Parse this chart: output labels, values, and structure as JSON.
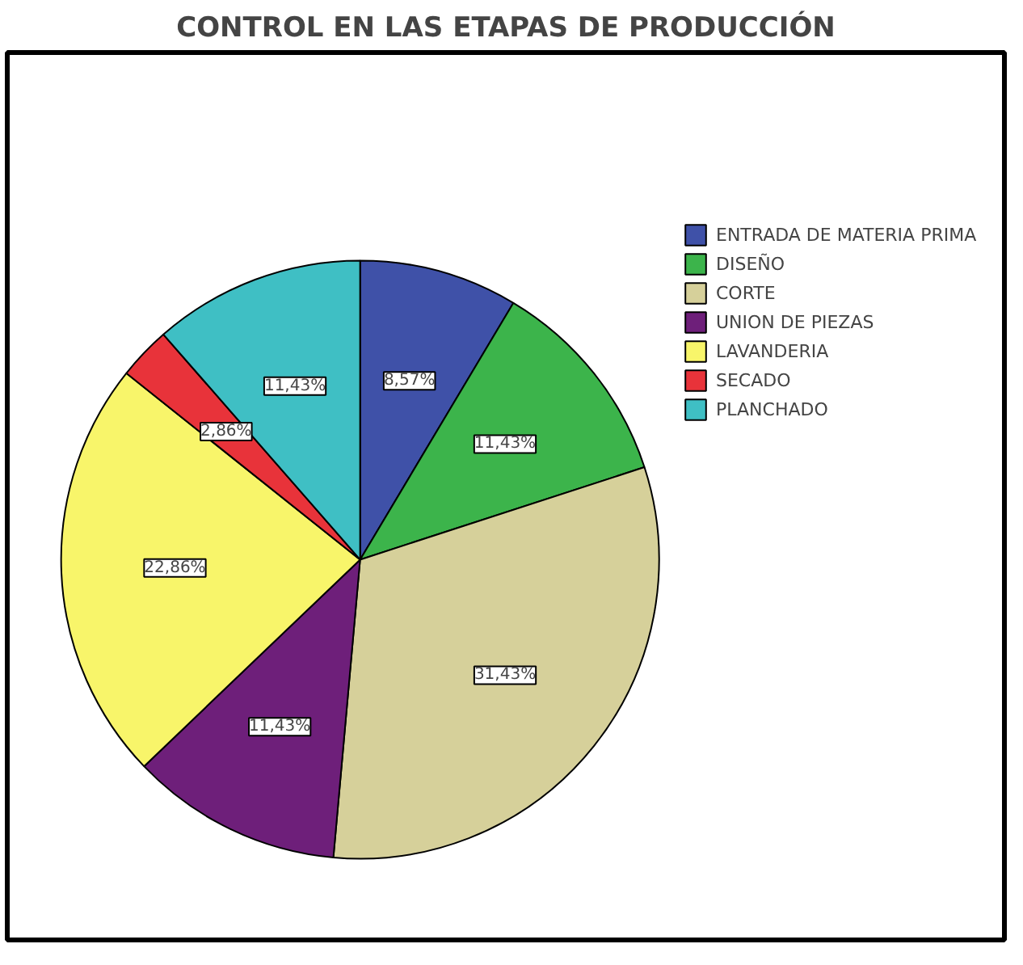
{
  "chart_data": {
    "type": "pie",
    "title": "CONTROL EN LAS ETAPAS DE PRODUCCIÓN",
    "categories": [
      "ENTRADA DE MATERIA PRIMA",
      "DISEÑO",
      "CORTE",
      "UNION DE PIEZAS",
      "LAVANDERIA",
      "SECADO",
      "PLANCHADO"
    ],
    "values": [
      8.57,
      11.43,
      31.43,
      11.43,
      22.86,
      2.86,
      11.43
    ],
    "value_labels": [
      "8,57%",
      "11,43%",
      "31,43%",
      "11,43%",
      "22,86%",
      "2,86%",
      "11,43%"
    ],
    "colors": [
      "#3f51a8",
      "#3cb44b",
      "#d6d09a",
      "#6e1f7a",
      "#f8f56a",
      "#e8333a",
      "#3fbfc4"
    ],
    "legend": "right"
  }
}
